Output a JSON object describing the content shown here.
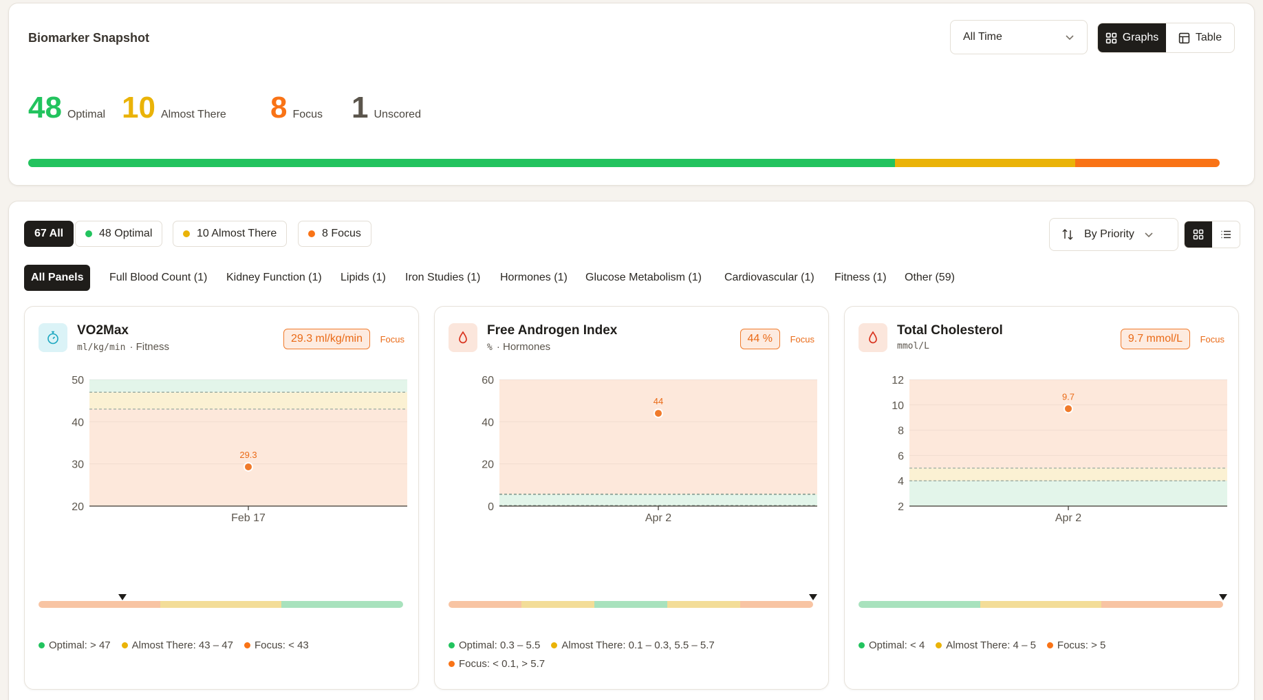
{
  "colors": {
    "optimal": "#22c35e",
    "almost": "#eab308",
    "focus": "#f97316",
    "unscored": "#5b554c",
    "dark": "#1f1d1a"
  },
  "snapshot": {
    "title": "Biomarker Snapshot",
    "time_filter": "All Time",
    "views": [
      "Graphs",
      "Table"
    ],
    "active_view": "Graphs",
    "stats": [
      {
        "value": "48",
        "label": "Optimal"
      },
      {
        "value": "10",
        "label": "Almost There"
      },
      {
        "value": "8",
        "label": "Focus"
      },
      {
        "value": "1",
        "label": "Unscored"
      }
    ],
    "distribution": {
      "optimal": 48,
      "almost": 10,
      "focus": 8
    }
  },
  "filters": {
    "status_chips": [
      "67 All",
      "48 Optimal",
      "10 Almost There",
      "8 Focus"
    ],
    "sort_label": "By Priority",
    "panels": [
      "All Panels",
      "Full Blood Count (1)",
      "Kidney Function (1)",
      "Lipids (1)",
      "Iron Studies (1)",
      "Hormones (1)",
      "Glucose Metabolism (1)",
      "Cardiovascular (1)",
      "Fitness (1)",
      "Other (59)"
    ]
  },
  "cards": [
    {
      "name": "VO2Max",
      "unit": "ml/kg/min",
      "category": "· Fitness",
      "value_label": "29.3 ml/kg/min",
      "status": "Focus",
      "legend": [
        "Optimal: > 47",
        "Almost There: 43 – 47",
        "Focus: < 43"
      ],
      "range_position": 0.23
    },
    {
      "name": "Free Androgen Index",
      "unit": "%",
      "category": "· Hormones",
      "value_label": "44 %",
      "status": "Focus",
      "legend": [
        "Optimal: 0.3 – 5.5",
        "Almost There: 0.1 – 0.3, 5.5 – 5.7",
        "Focus: < 0.1, > 5.7"
      ],
      "range_position": 1.0
    },
    {
      "name": "Total Cholesterol",
      "unit": "mmol/L",
      "category": "",
      "value_label": "9.7 mmol/L",
      "status": "Focus",
      "legend": [
        "Optimal: < 4",
        "Almost There: 4 – 5",
        "Focus: > 5"
      ],
      "range_position": 1.0
    }
  ],
  "chart_data": [
    {
      "type": "scatter",
      "title": "VO2Max",
      "x": [
        "Feb 17"
      ],
      "y": [
        29.3
      ],
      "data_labels": [
        "29.3"
      ],
      "ylim": [
        20,
        50
      ],
      "yticks": [
        20,
        30,
        40,
        50
      ],
      "bands": [
        {
          "from": 47,
          "to": 50,
          "zone": "optimal"
        },
        {
          "from": 43,
          "to": 47,
          "zone": "almost"
        },
        {
          "from": 20,
          "to": 43,
          "zone": "focus"
        }
      ]
    },
    {
      "type": "scatter",
      "title": "Free Androgen Index",
      "x": [
        "Apr 2"
      ],
      "y": [
        44
      ],
      "data_labels": [
        "44"
      ],
      "ylim": [
        0,
        60
      ],
      "yticks": [
        0,
        20,
        40,
        60
      ],
      "bands": [
        {
          "from": 0,
          "to": 0.1,
          "zone": "focus"
        },
        {
          "from": 0.1,
          "to": 0.3,
          "zone": "almost"
        },
        {
          "from": 0.3,
          "to": 5.5,
          "zone": "optimal"
        },
        {
          "from": 5.5,
          "to": 5.7,
          "zone": "almost"
        },
        {
          "from": 5.7,
          "to": 60,
          "zone": "focus"
        }
      ]
    },
    {
      "type": "scatter",
      "title": "Total Cholesterol",
      "x": [
        "Apr 2"
      ],
      "y": [
        9.7
      ],
      "data_labels": [
        "9.7"
      ],
      "ylim": [
        2,
        12
      ],
      "yticks": [
        2,
        4,
        6,
        8,
        10,
        12
      ],
      "bands": [
        {
          "from": 2,
          "to": 4,
          "zone": "optimal"
        },
        {
          "from": 4,
          "to": 5,
          "zone": "almost"
        },
        {
          "from": 5,
          "to": 12,
          "zone": "focus"
        }
      ]
    }
  ]
}
